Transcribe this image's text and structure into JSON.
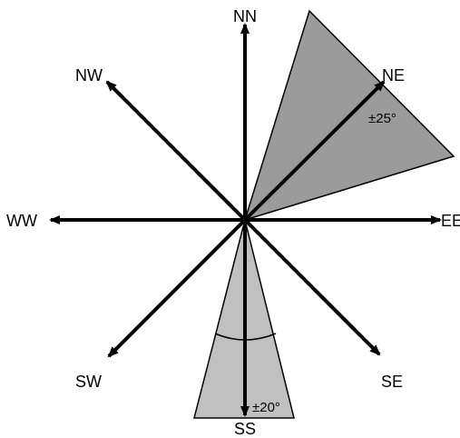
{
  "diagram": {
    "directions": {
      "nn": "NN",
      "ne": "NE",
      "ee": "EE",
      "se": "SE",
      "ss": "SS",
      "sw": "SW",
      "ww": "WW",
      "nw": "NW"
    },
    "tolerances": {
      "ne": "±25°",
      "ss": "±20°"
    },
    "colors": {
      "ne_sector_fill": "#9b9b9b",
      "ss_sector_fill": "#c0c0c0",
      "arrow": "#000000"
    }
  }
}
